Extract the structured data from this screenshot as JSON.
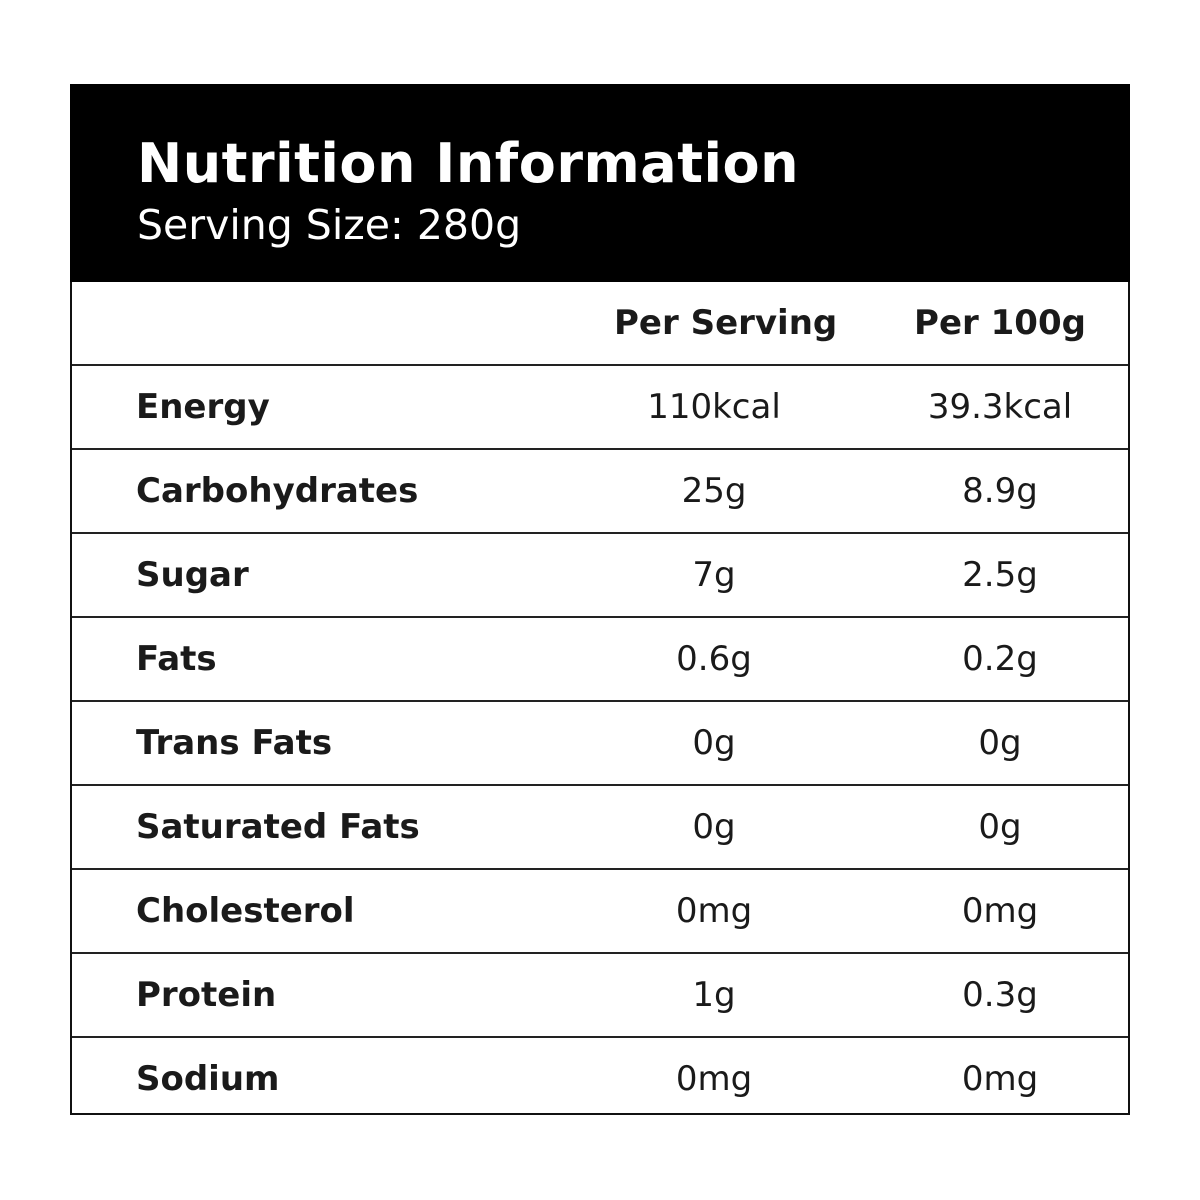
{
  "title": "Nutrition Information",
  "serving_size": "Serving Size: 280g",
  "columns": {
    "per_serving": "Per Serving",
    "per_100g": "Per 100g"
  },
  "rows": [
    {
      "nutrient": "Energy",
      "per_serving": "110kcal",
      "per_100g": "39.3kcal"
    },
    {
      "nutrient": "Carbohydrates",
      "per_serving": "25g",
      "per_100g": "8.9g"
    },
    {
      "nutrient": "Sugar",
      "per_serving": "7g",
      "per_100g": "2.5g"
    },
    {
      "nutrient": "Fats",
      "per_serving": "0.6g",
      "per_100g": "0.2g"
    },
    {
      "nutrient": "Trans Fats",
      "per_serving": "0g",
      "per_100g": "0g"
    },
    {
      "nutrient": "Saturated Fats",
      "per_serving": "0g",
      "per_100g": "0g"
    },
    {
      "nutrient": "Cholesterol",
      "per_serving": "0mg",
      "per_100g": "0mg"
    },
    {
      "nutrient": "Protein",
      "per_serving": "1g",
      "per_100g": "0.3g"
    },
    {
      "nutrient": "Sodium",
      "per_serving": "0mg",
      "per_100g": "0mg"
    }
  ],
  "colors": {
    "header_background": "#000000",
    "header_text": "#ffffff",
    "body_text": "#1a1a1a",
    "border": "#111111"
  }
}
